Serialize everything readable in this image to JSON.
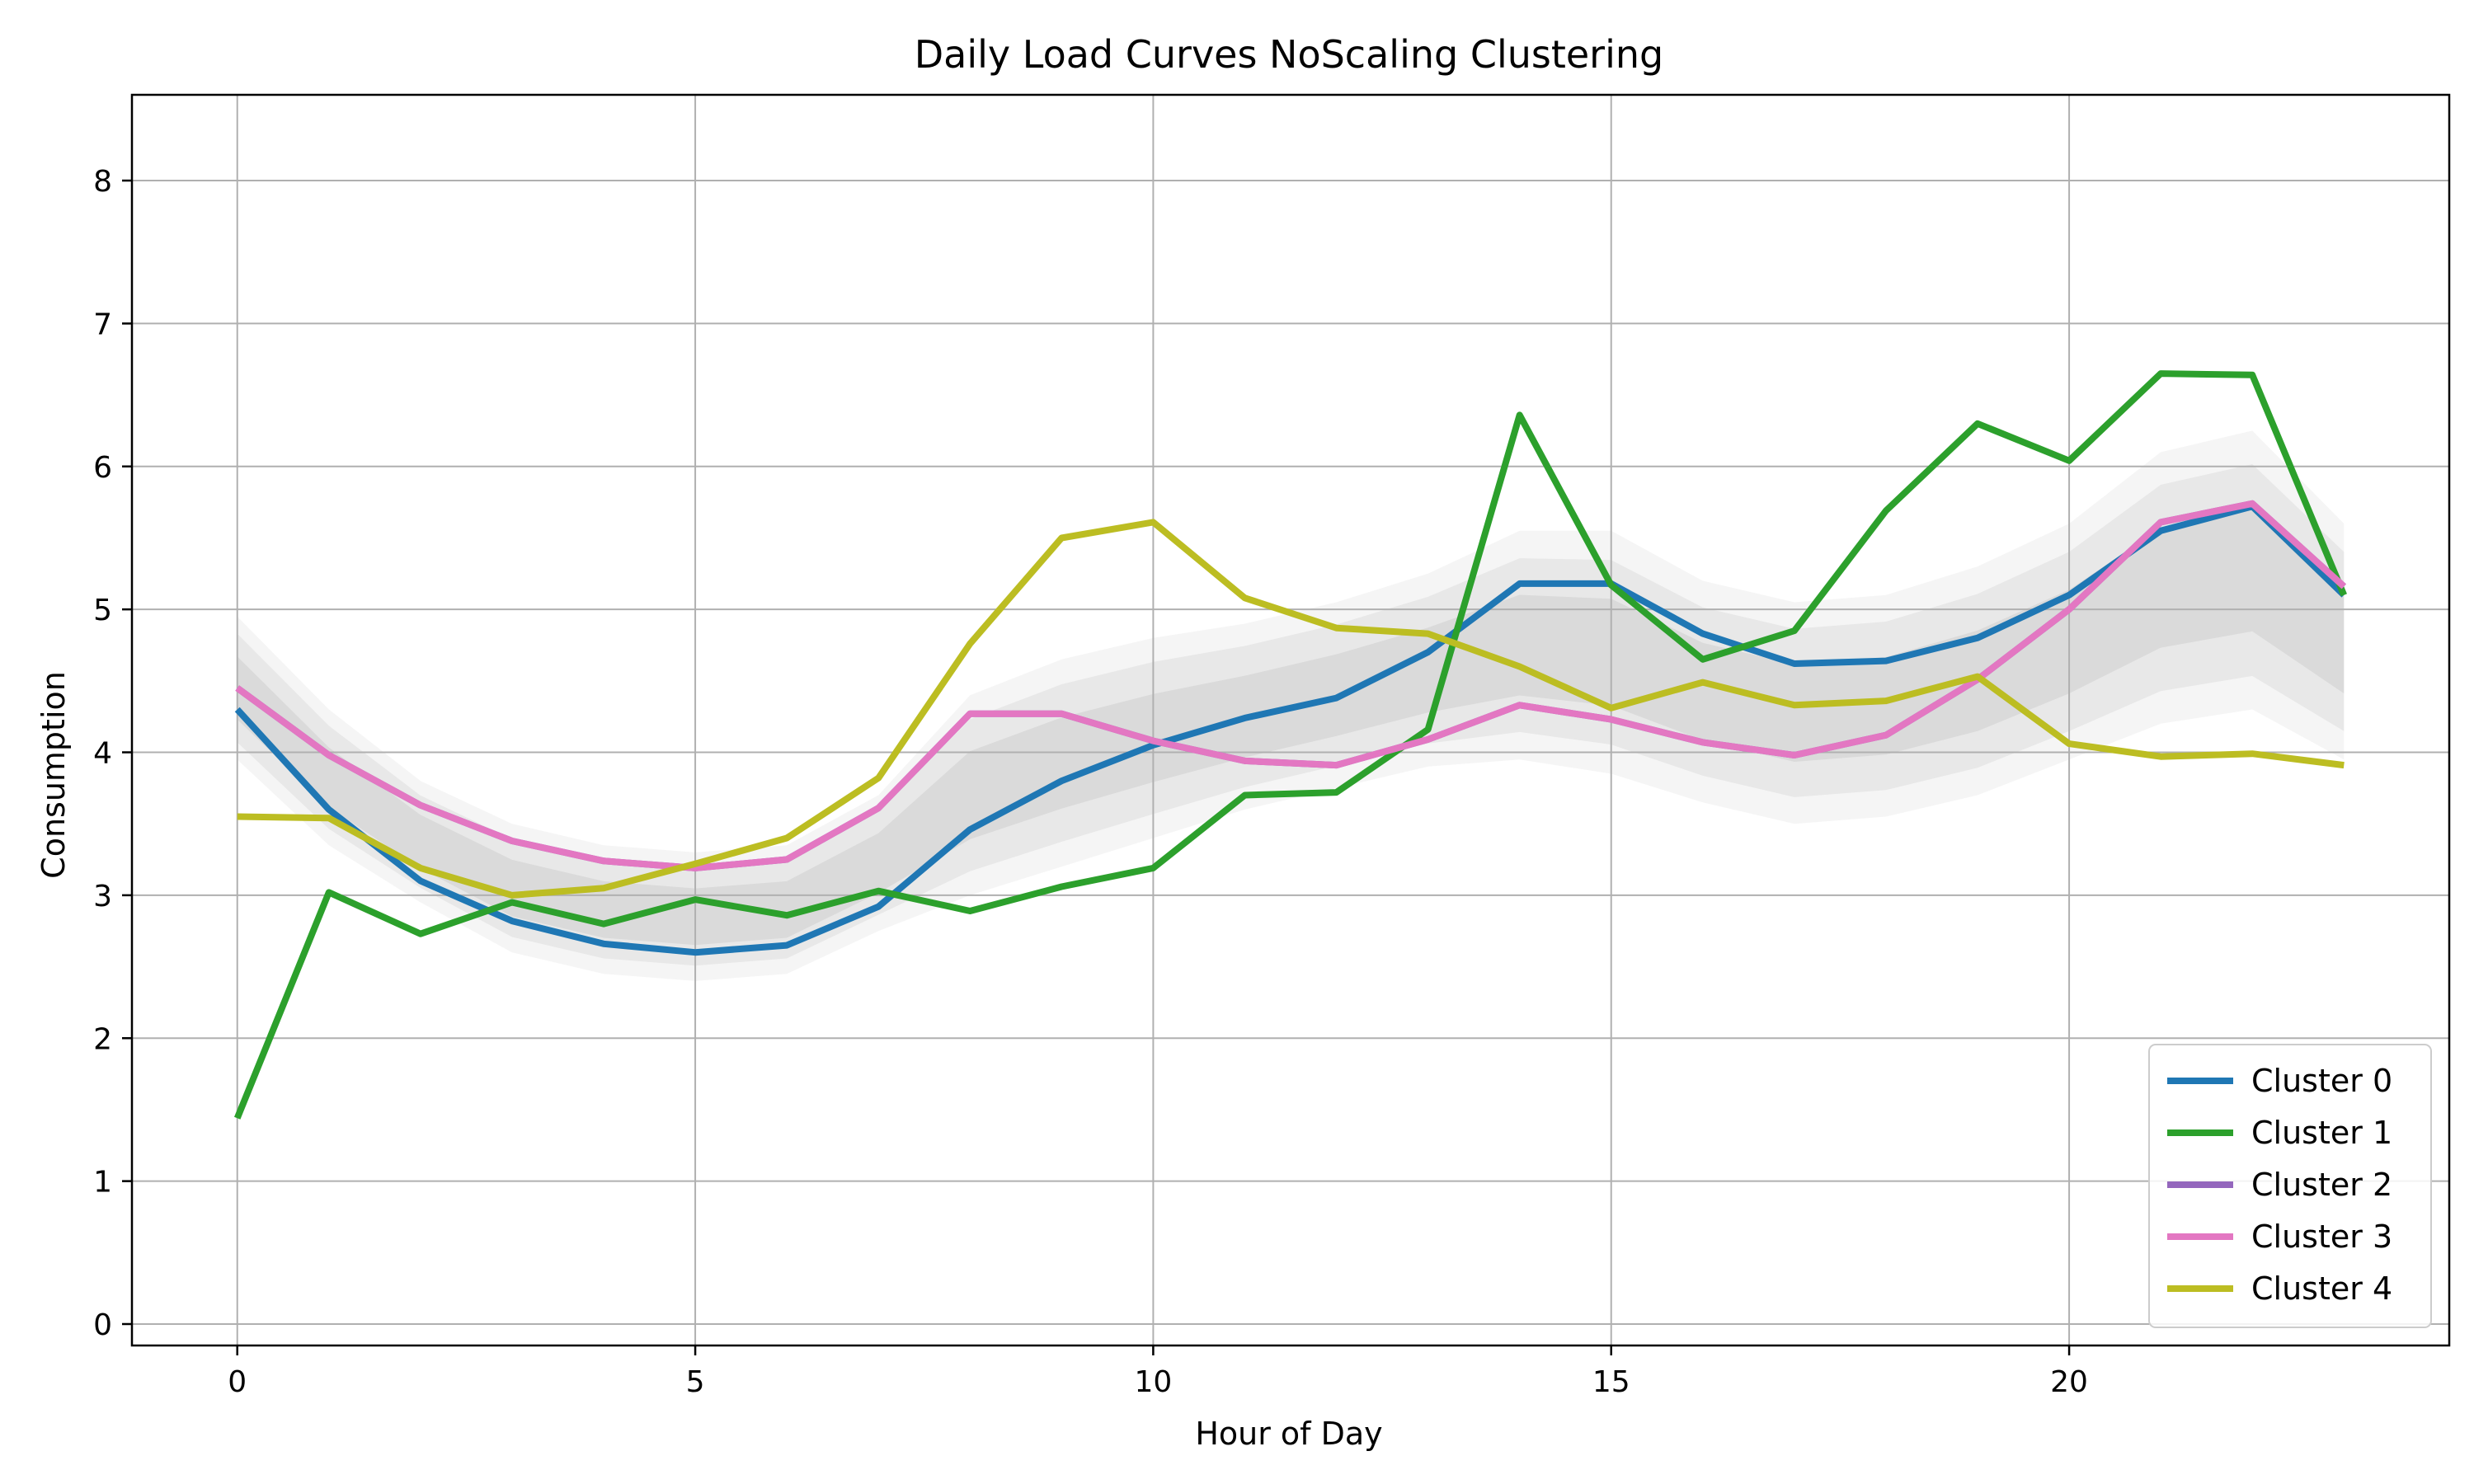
{
  "chart_data": {
    "type": "line",
    "title": "Daily Load Curves NoScaling Clustering",
    "xlabel": "Hour of Day",
    "ylabel": "Consumption",
    "xlim": [
      -1.15,
      24.15
    ],
    "ylim": [
      -0.15,
      8.6
    ],
    "xticks": [
      0,
      5,
      10,
      15,
      20
    ],
    "yticks": [
      0,
      1,
      2,
      3,
      4,
      5,
      6,
      7,
      8
    ],
    "grid": true,
    "legend_position": "lower-right",
    "x": [
      0,
      1,
      2,
      3,
      4,
      5,
      6,
      7,
      8,
      9,
      10,
      11,
      12,
      13,
      14,
      15,
      16,
      17,
      18,
      19,
      20,
      21,
      22,
      23
    ],
    "background_band": {
      "color": "#9a9a9a",
      "lower": [
        3.95,
        3.35,
        2.95,
        2.6,
        2.45,
        2.4,
        2.45,
        2.75,
        3.0,
        3.2,
        3.4,
        3.6,
        3.75,
        3.9,
        3.95,
        3.85,
        3.65,
        3.5,
        3.55,
        3.7,
        3.95,
        4.2,
        4.3,
        3.95
      ],
      "upper": [
        4.95,
        4.3,
        3.8,
        3.5,
        3.35,
        3.3,
        3.35,
        3.7,
        4.4,
        4.65,
        4.8,
        4.9,
        5.05,
        5.25,
        5.55,
        5.55,
        5.2,
        5.05,
        5.1,
        5.3,
        5.6,
        6.1,
        6.25,
        5.6
      ]
    },
    "series": [
      {
        "name": "Cluster 0",
        "color": "#1f77b4",
        "values": [
          4.3,
          3.6,
          3.1,
          2.82,
          2.66,
          2.6,
          2.65,
          2.92,
          3.46,
          3.8,
          4.05,
          4.24,
          4.38,
          4.7,
          5.18,
          5.18,
          4.83,
          4.62,
          4.64,
          4.8,
          5.1,
          5.55,
          5.72,
          5.1
        ]
      },
      {
        "name": "Cluster 1",
        "color": "#2ca02c",
        "values": [
          1.44,
          3.02,
          2.73,
          2.95,
          2.8,
          2.97,
          2.86,
          3.03,
          2.89,
          3.06,
          3.19,
          3.7,
          3.72,
          4.16,
          6.36,
          5.17,
          4.65,
          4.85,
          5.69,
          6.3,
          6.04,
          6.65,
          6.64,
          5.1
        ]
      },
      {
        "name": "Cluster 2",
        "color": "#9467bd",
        "values": [
          4.45,
          3.98,
          3.63,
          3.38,
          3.24,
          3.19,
          3.25,
          3.61,
          4.27,
          4.27,
          4.08,
          3.94,
          3.91,
          4.09,
          4.33,
          4.23,
          4.07,
          3.98,
          4.12,
          4.51,
          5.0,
          5.61,
          5.74,
          5.16
        ]
      },
      {
        "name": "Cluster 3",
        "color": "#e377c2",
        "values": [
          4.45,
          3.98,
          3.63,
          3.38,
          3.24,
          3.19,
          3.25,
          3.61,
          4.27,
          4.27,
          4.08,
          3.94,
          3.91,
          4.09,
          4.33,
          4.23,
          4.07,
          3.98,
          4.12,
          4.51,
          5.0,
          5.61,
          5.74,
          5.16
        ]
      },
      {
        "name": "Cluster 4",
        "color": "#bcbd22",
        "values": [
          3.55,
          3.54,
          3.19,
          3.0,
          3.05,
          3.22,
          3.4,
          3.82,
          4.76,
          5.5,
          5.61,
          5.08,
          4.87,
          4.83,
          4.6,
          4.31,
          4.49,
          4.33,
          4.36,
          4.53,
          4.06,
          3.97,
          3.99,
          3.91
        ]
      }
    ]
  }
}
